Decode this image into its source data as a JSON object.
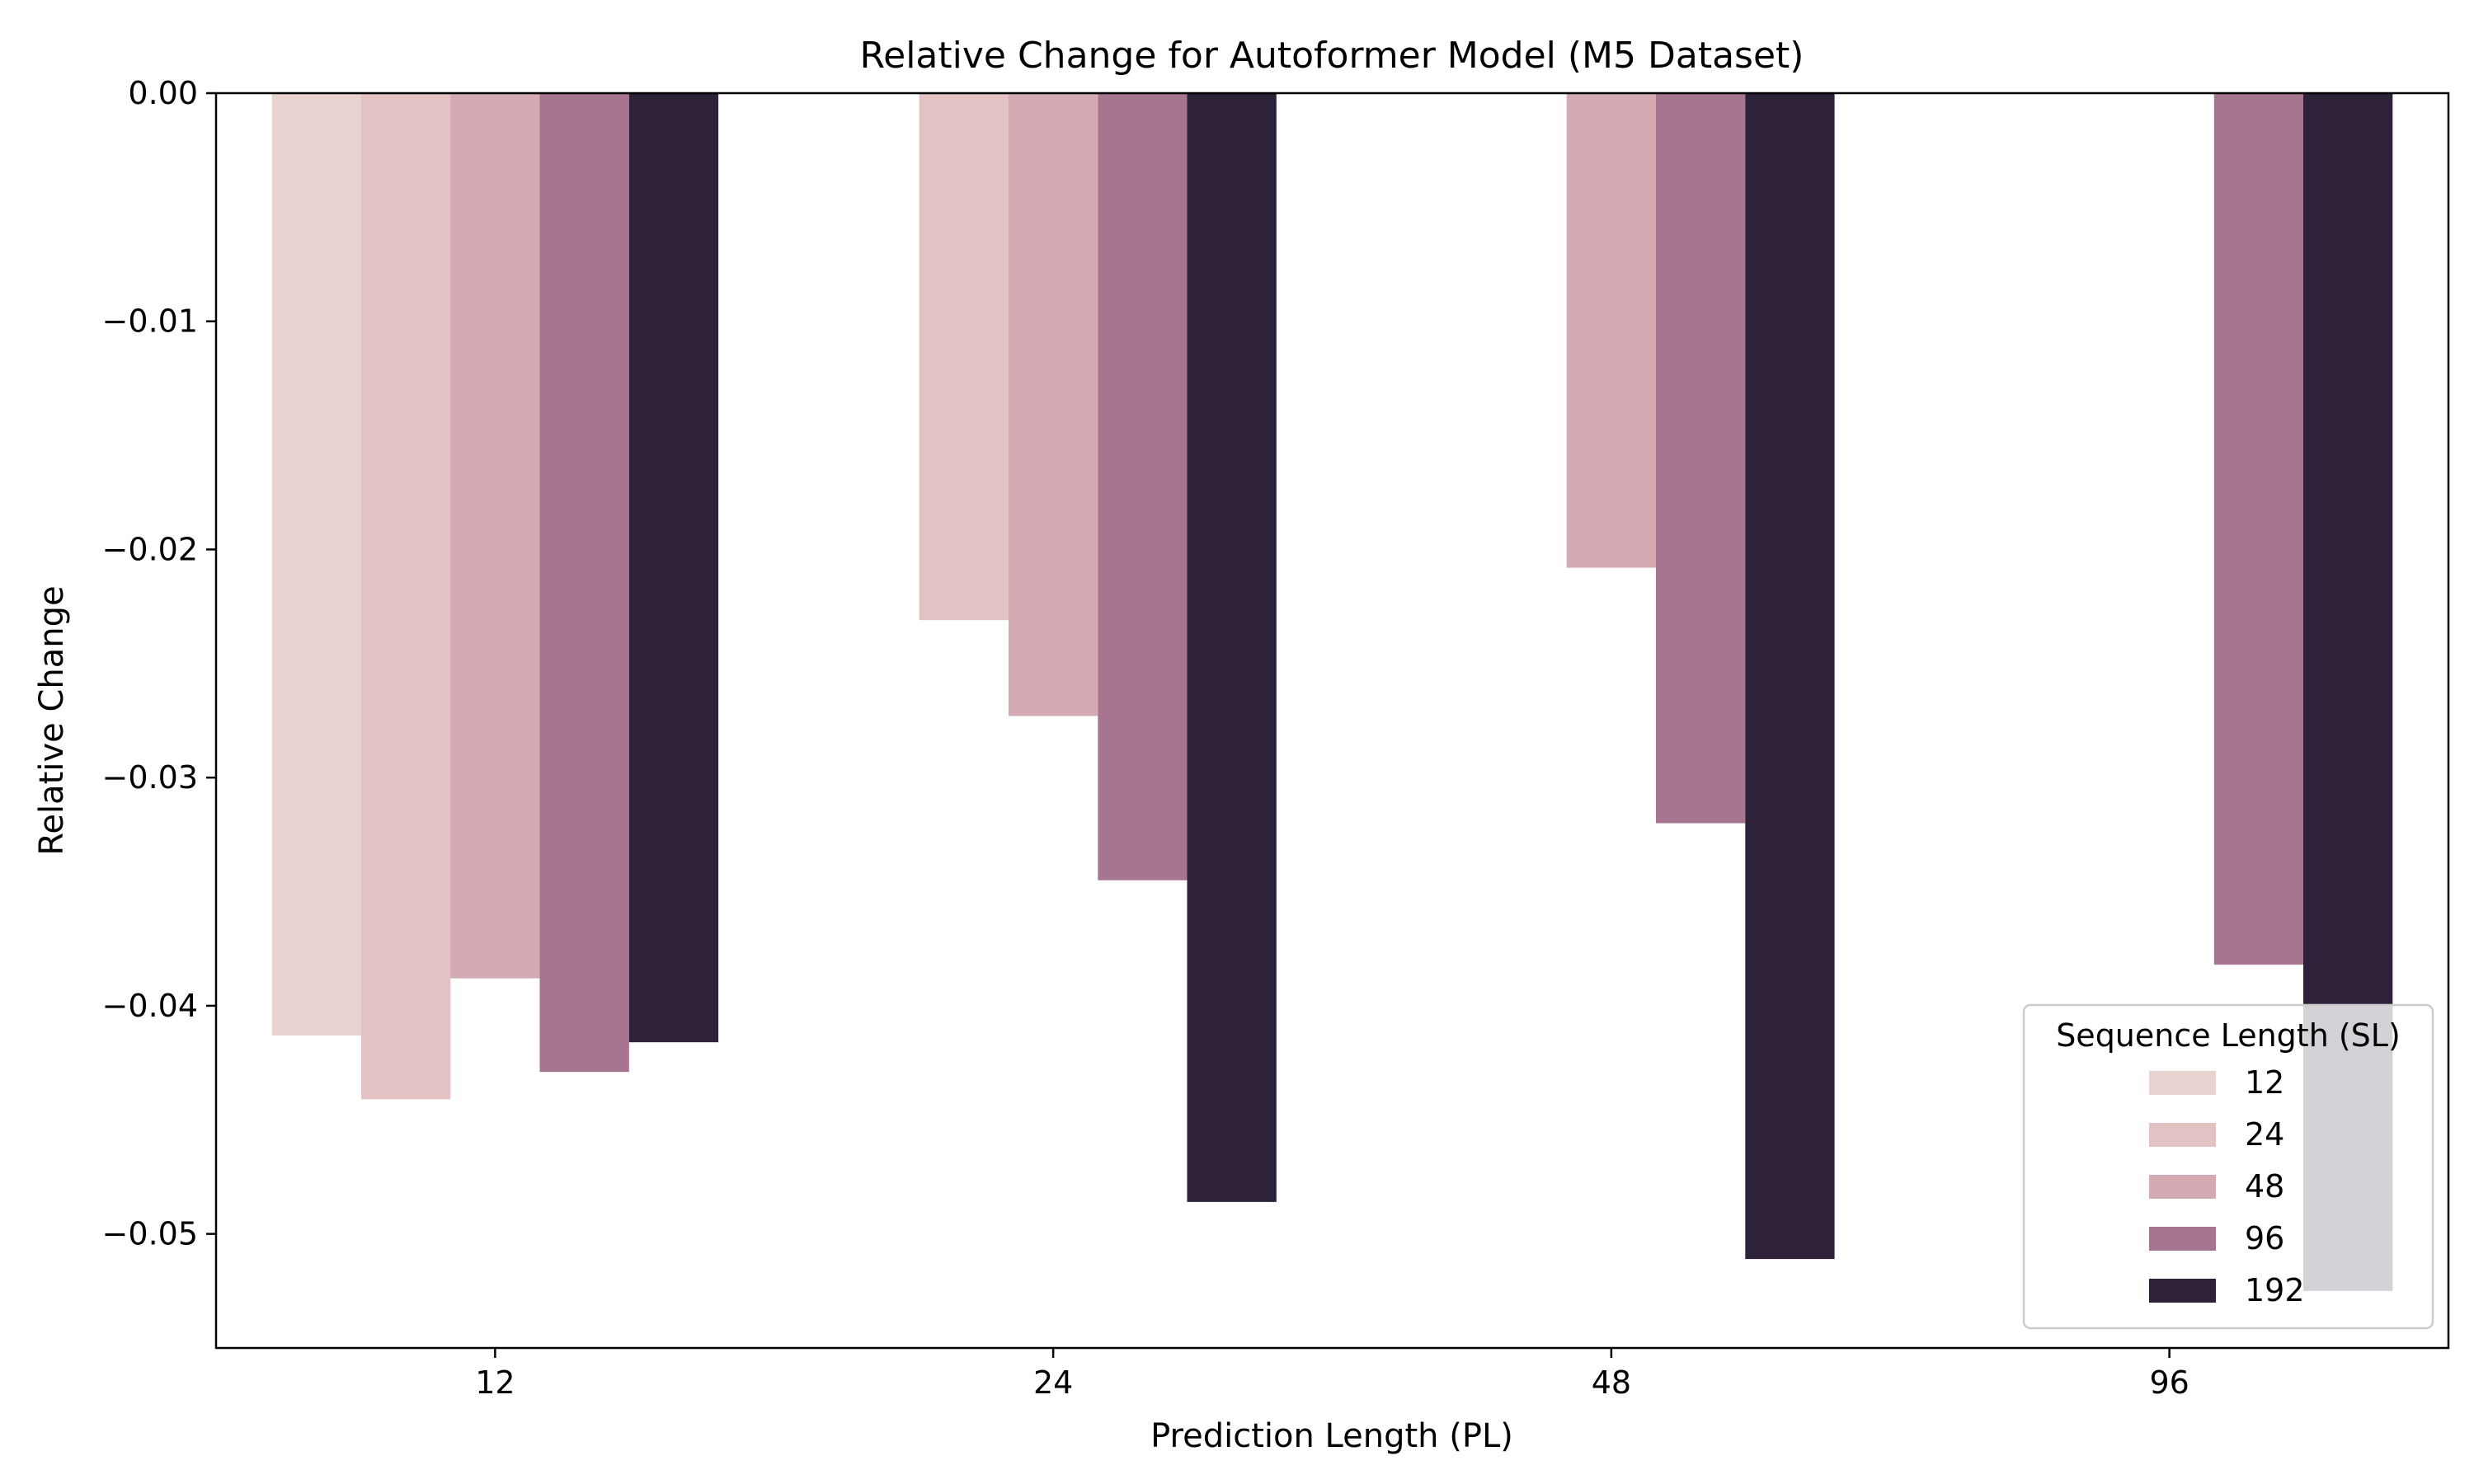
{
  "chart_data": {
    "type": "bar",
    "title": "Relative Change for Autoformer Model (M5 Dataset)",
    "xlabel": "Prediction Length (PL)",
    "ylabel": "Relative Change",
    "categories": [
      "12",
      "24",
      "48",
      "96"
    ],
    "ylim": [
      -0.055,
      0.0
    ],
    "yticks": [
      0.0,
      -0.01,
      -0.02,
      -0.03,
      -0.04,
      -0.05
    ],
    "ytick_labels": [
      "0.00",
      "−0.01",
      "−0.02",
      "−0.03",
      "−0.04",
      "−0.05"
    ],
    "grid": false,
    "legend": {
      "title": "Sequence Length (SL)",
      "placement": "lower-right"
    },
    "series": [
      {
        "name": "12",
        "color": "#e9d3d1",
        "values": [
          -0.0413,
          null,
          null,
          null
        ]
      },
      {
        "name": "24",
        "color": "#e2c2c2",
        "values": [
          -0.0441,
          -0.0231,
          null,
          null
        ]
      },
      {
        "name": "48",
        "color": "#d4abb2",
        "values": [
          -0.0388,
          -0.0273,
          -0.0208,
          null
        ]
      },
      {
        "name": "96",
        "color": "#a7758f",
        "values": [
          -0.0429,
          -0.0345,
          -0.032,
          -0.0382
        ]
      },
      {
        "name": "192",
        "color": "#2e213a",
        "values": [
          -0.0416,
          -0.0486,
          -0.0511,
          -0.0525
        ]
      }
    ]
  }
}
